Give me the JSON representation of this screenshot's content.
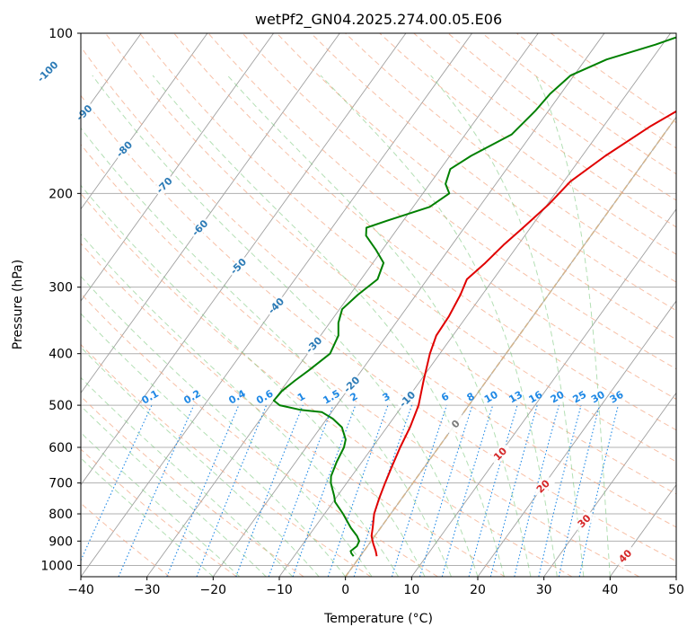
{
  "chart_data": {
    "type": "line",
    "subtype": "skew-t log-p",
    "title": "wetPf2_GN04.2025.274.00.05.E06",
    "xlabel": "Temperature (°C)",
    "ylabel": "Pressure (hPa)",
    "xlim": [
      -40,
      50
    ],
    "ylim": [
      1050,
      100
    ],
    "x_ticks": [
      "−40",
      "−30",
      "−20",
      "−10",
      "0",
      "10",
      "20",
      "30",
      "40",
      "50"
    ],
    "x_tick_values": [
      -40,
      -30,
      -20,
      -10,
      0,
      10,
      20,
      30,
      40,
      50
    ],
    "y_ticks": [
      "100",
      "200",
      "300",
      "400",
      "500",
      "600",
      "700",
      "800",
      "900",
      "1000"
    ],
    "y_tick_values": [
      100,
      200,
      300,
      400,
      500,
      600,
      700,
      800,
      900,
      1000
    ],
    "colors": {
      "temperature": "#e00000",
      "dewpoint": "#008000",
      "isotherm": "#a0a0a0",
      "dry_adiabat": "#f4a582",
      "moist_adiabat": "#74c476",
      "mixing_ratio": "#1e88e5",
      "isotherm_label": "#2c7bb6",
      "freezing_line": "#d2b48c"
    },
    "series": [
      {
        "name": "Temperature",
        "pressure": [
          961,
          940,
          910,
          880,
          850,
          800,
          750,
          700,
          650,
          600,
          550,
          500,
          450,
          400,
          370,
          340,
          310,
          290,
          270,
          250,
          230,
          210,
          190,
          170,
          150,
          130,
          115,
          100
        ],
        "values": [
          2.5,
          1.8,
          0.6,
          -0.5,
          -1.2,
          -2.5,
          -3.4,
          -4.2,
          -5.0,
          -5.8,
          -6.5,
          -7.6,
          -9.5,
          -11.5,
          -12.5,
          -12.7,
          -13.3,
          -14.0,
          -13.0,
          -12.2,
          -11.0,
          -9.8,
          -9.0,
          -6.5,
          -3.0,
          2.0,
          5.5,
          10.0
        ]
      },
      {
        "name": "Dewpoint",
        "pressure": [
          961,
          950,
          940,
          920,
          900,
          880,
          850,
          800,
          760,
          740,
          700,
          680,
          640,
          600,
          580,
          550,
          530,
          515,
          510,
          500,
          490,
          470,
          450,
          430,
          400,
          370,
          350,
          330,
          310,
          290,
          270,
          255,
          240,
          232,
          225,
          212,
          200,
          192,
          180,
          170,
          155,
          140,
          130,
          120,
          112,
          105,
          100
        ],
        "values": [
          -1.0,
          -1.6,
          -2.0,
          -1.6,
          -1.8,
          -2.7,
          -4.5,
          -7.2,
          -9.7,
          -10.5,
          -12.4,
          -13.1,
          -13.8,
          -14.3,
          -14.9,
          -16.8,
          -19.1,
          -21.5,
          -25.0,
          -28.6,
          -30.0,
          -29.8,
          -29.0,
          -28.0,
          -26.6,
          -27.3,
          -28.7,
          -29.6,
          -28.8,
          -27.5,
          -28.4,
          -31.0,
          -34.0,
          -34.8,
          -32.4,
          -27.5,
          -26.0,
          -27.6,
          -28.5,
          -26.8,
          -23.0,
          -22.0,
          -21.6,
          -20.5,
          -16.8,
          -11.0,
          -7.4
        ]
      }
    ],
    "isotherm_label_text": [
      "-100",
      "-90",
      "-80",
      "-70",
      "-60",
      "-50",
      "-40",
      "-30",
      "-20",
      "-10",
      "0",
      "10",
      "20",
      "30",
      "40"
    ],
    "isotherm_label_values": [
      -100,
      -90,
      -80,
      -70,
      -60,
      -50,
      -40,
      -30,
      -20,
      -10,
      0,
      10,
      20,
      30,
      40
    ],
    "mixing_ratio_label_text": [
      "0.1",
      "0.2",
      "0.4",
      "0.6",
      "1",
      "1.5",
      "2",
      "3",
      "4",
      "6",
      "8",
      "10",
      "13",
      "16",
      "20",
      "25",
      "30",
      "36"
    ],
    "mixing_ratio_values": [
      0.1,
      0.2,
      0.4,
      0.6,
      1,
      1.5,
      2,
      3,
      4,
      6,
      8,
      10,
      13,
      16,
      20,
      25,
      30,
      36
    ]
  }
}
